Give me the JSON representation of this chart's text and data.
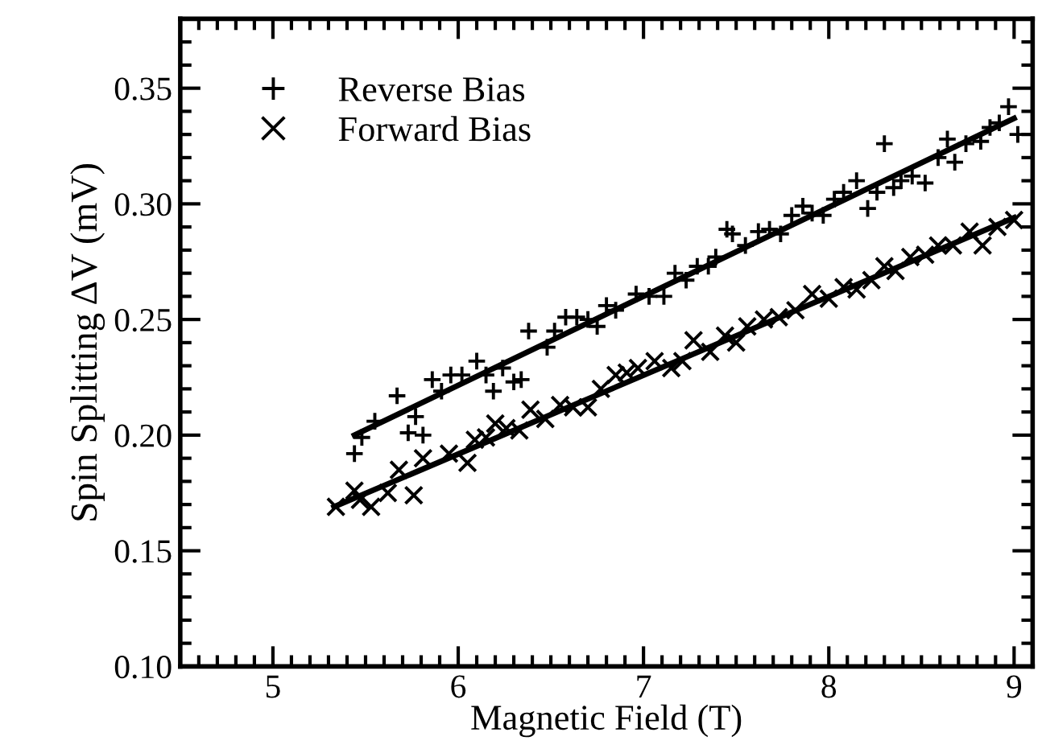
{
  "chart_data": {
    "type": "scatter",
    "xlabel": "Magnetic Field (T)",
    "ylabel": "Spin Splitting ΔV (mV)",
    "xlim": [
      4.5,
      9.1
    ],
    "ylim": [
      0.1,
      0.38
    ],
    "xticks": [
      5,
      6,
      7,
      8,
      9,
      {
        "value": 4.6,
        "label": null
      },
      {
        "value": 4.7,
        "label": null
      },
      {
        "value": 4.8,
        "label": null
      },
      {
        "value": 4.9,
        "label": null
      },
      {
        "value": 5.1,
        "label": null
      },
      {
        "value": 5.2,
        "label": null
      },
      {
        "value": 5.3,
        "label": null
      },
      {
        "value": 5.4,
        "label": null
      },
      {
        "value": 5.5,
        "label": null
      },
      {
        "value": 5.6,
        "label": null
      },
      {
        "value": 5.7,
        "label": null
      },
      {
        "value": 5.8,
        "label": null
      },
      {
        "value": 5.9,
        "label": null
      },
      {
        "value": 6.1,
        "label": null
      },
      {
        "value": 6.2,
        "label": null
      },
      {
        "value": 6.3,
        "label": null
      },
      {
        "value": 6.4,
        "label": null
      },
      {
        "value": 6.5,
        "label": null
      },
      {
        "value": 6.6,
        "label": null
      },
      {
        "value": 6.7,
        "label": null
      },
      {
        "value": 6.8,
        "label": null
      },
      {
        "value": 6.9,
        "label": null
      },
      {
        "value": 7.1,
        "label": null
      },
      {
        "value": 7.2,
        "label": null
      },
      {
        "value": 7.3,
        "label": null
      },
      {
        "value": 7.4,
        "label": null
      },
      {
        "value": 7.5,
        "label": null
      },
      {
        "value": 7.6,
        "label": null
      },
      {
        "value": 7.7,
        "label": null
      },
      {
        "value": 7.8,
        "label": null
      },
      {
        "value": 7.9,
        "label": null
      },
      {
        "value": 8.1,
        "label": null
      },
      {
        "value": 8.2,
        "label": null
      },
      {
        "value": 8.3,
        "label": null
      },
      {
        "value": 8.4,
        "label": null
      },
      {
        "value": 8.5,
        "label": null
      },
      {
        "value": 8.6,
        "label": null
      },
      {
        "value": 8.7,
        "label": null
      },
      {
        "value": 8.8,
        "label": null
      },
      {
        "value": 8.9,
        "label": null
      },
      {
        "value": 9.0,
        "label": null
      }
    ],
    "yticks": [
      {
        "value": 0.1,
        "label": "0.10"
      },
      {
        "value": 0.15,
        "label": "0.15"
      },
      {
        "value": 0.2,
        "label": "0.20"
      },
      {
        "value": 0.25,
        "label": "0.25"
      },
      {
        "value": 0.3,
        "label": "0.30"
      },
      {
        "value": 0.35,
        "label": "0.35"
      },
      {
        "value": 0.11,
        "label": null
      },
      {
        "value": 0.12,
        "label": null
      },
      {
        "value": 0.13,
        "label": null
      },
      {
        "value": 0.14,
        "label": null
      },
      {
        "value": 0.16,
        "label": null
      },
      {
        "value": 0.17,
        "label": null
      },
      {
        "value": 0.18,
        "label": null
      },
      {
        "value": 0.19,
        "label": null
      },
      {
        "value": 0.21,
        "label": null
      },
      {
        "value": 0.22,
        "label": null
      },
      {
        "value": 0.23,
        "label": null
      },
      {
        "value": 0.24,
        "label": null
      },
      {
        "value": 0.26,
        "label": null
      },
      {
        "value": 0.27,
        "label": null
      },
      {
        "value": 0.28,
        "label": null
      },
      {
        "value": 0.29,
        "label": null
      },
      {
        "value": 0.31,
        "label": null
      },
      {
        "value": 0.32,
        "label": null
      },
      {
        "value": 0.33,
        "label": null
      },
      {
        "value": 0.34,
        "label": null
      },
      {
        "value": 0.36,
        "label": null
      },
      {
        "value": 0.37,
        "label": null
      }
    ],
    "grid": false,
    "legend": "top left",
    "series": [
      {
        "name": "Reverse Bias",
        "marker": "plus",
        "color": "#000000",
        "x": [
          5.44,
          5.48,
          5.55,
          5.67,
          5.73,
          5.77,
          5.81,
          5.86,
          5.91,
          5.96,
          6.02,
          6.1,
          6.15,
          6.19,
          6.24,
          6.3,
          6.34,
          6.38,
          6.48,
          6.52,
          6.58,
          6.64,
          6.7,
          6.75,
          6.8,
          6.85,
          6.96,
          7.03,
          7.11,
          7.17,
          7.23,
          7.29,
          7.35,
          7.39,
          7.45,
          7.48,
          7.55,
          7.62,
          7.68,
          7.74,
          7.8,
          7.86,
          7.91,
          7.97,
          8.03,
          8.08,
          8.15,
          8.21,
          8.26,
          8.3,
          8.35,
          8.39,
          8.45,
          8.52,
          8.59,
          8.64,
          8.68,
          8.74,
          8.82,
          8.87,
          8.92,
          8.97,
          9.02
        ],
        "values": [
          0.192,
          0.199,
          0.206,
          0.217,
          0.201,
          0.208,
          0.2,
          0.224,
          0.219,
          0.226,
          0.226,
          0.232,
          0.226,
          0.219,
          0.229,
          0.223,
          0.224,
          0.245,
          0.238,
          0.245,
          0.251,
          0.251,
          0.25,
          0.247,
          0.256,
          0.254,
          0.261,
          0.26,
          0.26,
          0.27,
          0.267,
          0.273,
          0.273,
          0.277,
          0.289,
          0.287,
          0.282,
          0.288,
          0.289,
          0.287,
          0.295,
          0.299,
          0.296,
          0.295,
          0.302,
          0.305,
          0.31,
          0.298,
          0.305,
          0.326,
          0.307,
          0.31,
          0.312,
          0.309,
          0.32,
          0.328,
          0.318,
          0.326,
          0.327,
          0.333,
          0.335,
          0.342,
          0.33
        ]
      },
      {
        "name": "Forward Bias",
        "marker": "cross",
        "color": "#000000",
        "x": [
          5.34,
          5.44,
          5.47,
          5.53,
          5.62,
          5.68,
          5.76,
          5.81,
          5.95,
          6.05,
          6.09,
          6.15,
          6.2,
          6.26,
          6.33,
          6.39,
          6.47,
          6.55,
          6.62,
          6.7,
          6.77,
          6.85,
          6.91,
          6.97,
          7.06,
          7.15,
          7.21,
          7.27,
          7.36,
          7.44,
          7.5,
          7.56,
          7.65,
          7.73,
          7.82,
          7.91,
          8.0,
          8.08,
          8.15,
          8.23,
          8.3,
          8.36,
          8.44,
          8.52,
          8.59,
          8.67,
          8.76,
          8.83,
          8.91,
          9.0
        ],
        "values": [
          0.169,
          0.176,
          0.172,
          0.169,
          0.175,
          0.185,
          0.174,
          0.19,
          0.192,
          0.188,
          0.198,
          0.199,
          0.205,
          0.203,
          0.202,
          0.211,
          0.207,
          0.213,
          0.212,
          0.212,
          0.22,
          0.226,
          0.227,
          0.229,
          0.232,
          0.229,
          0.232,
          0.241,
          0.236,
          0.243,
          0.24,
          0.247,
          0.25,
          0.251,
          0.254,
          0.261,
          0.259,
          0.264,
          0.263,
          0.267,
          0.273,
          0.271,
          0.277,
          0.278,
          0.282,
          0.282,
          0.288,
          0.282,
          0.29,
          0.293
        ]
      },
      {
        "type": "line",
        "color": "#000000",
        "x": [
          5.44,
          9.0
        ],
        "values": [
          0.2,
          0.337
        ]
      },
      {
        "type": "line",
        "color": "#000000",
        "x": [
          5.33,
          9.0
        ],
        "values": [
          0.169,
          0.294
        ]
      }
    ]
  }
}
